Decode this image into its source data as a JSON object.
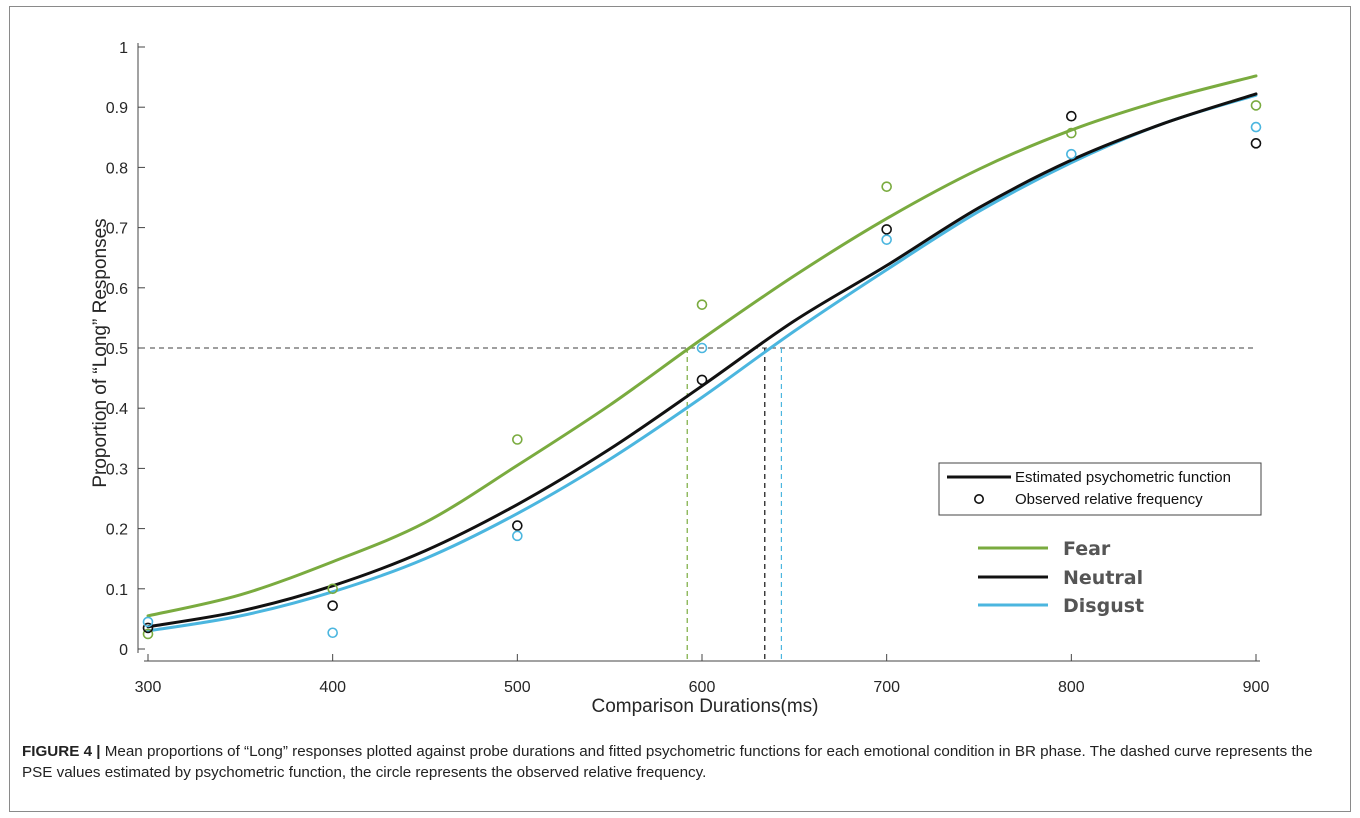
{
  "chart_data": {
    "type": "line",
    "xlabel": "Comparison Durations(ms)",
    "ylabel": "Proportion of “Long” Responses",
    "xlim": [
      300,
      900
    ],
    "ylim": [
      0,
      1
    ],
    "xticks": [
      300,
      400,
      500,
      600,
      700,
      800,
      900
    ],
    "yticks": [
      0,
      0.1,
      0.2,
      0.3,
      0.4,
      0.5,
      0.6,
      0.7,
      0.8,
      0.9,
      1
    ],
    "ytick_labels": [
      "0",
      "0.1",
      "0.2",
      "0.3",
      "0.4",
      "0.5",
      "0.6",
      "0.7",
      "0.8",
      "0.9",
      "1"
    ],
    "threshold": 0.5,
    "legend": {
      "placement": "lower-right",
      "fit_label": "Estimated psychometric function",
      "obs_label": "Observed relative frequency"
    },
    "x": [
      300,
      400,
      500,
      600,
      700,
      800,
      900
    ],
    "series": [
      {
        "name": "Fear",
        "color": "#7aab3f",
        "pse": 592,
        "fit_x": [
          300,
          350,
          400,
          450,
          500,
          550,
          600,
          650,
          700,
          750,
          800,
          850,
          900
        ],
        "fit_y": [
          0.055,
          0.09,
          0.145,
          0.21,
          0.305,
          0.405,
          0.515,
          0.62,
          0.715,
          0.797,
          0.862,
          0.912,
          0.952
        ],
        "observed": [
          0.025,
          0.1,
          0.348,
          0.572,
          0.768,
          0.857,
          0.903
        ]
      },
      {
        "name": "Neutral",
        "color": "#111111",
        "pse": 634,
        "fit_x": [
          300,
          350,
          400,
          450,
          500,
          550,
          600,
          650,
          700,
          750,
          800,
          850,
          900
        ],
        "fit_y": [
          0.037,
          0.063,
          0.105,
          0.163,
          0.24,
          0.332,
          0.437,
          0.545,
          0.637,
          0.733,
          0.812,
          0.873,
          0.922
        ],
        "observed": [
          0.035,
          0.072,
          0.205,
          0.447,
          0.697,
          0.885,
          0.84
        ]
      },
      {
        "name": "Disgust",
        "color": "#4bb6df",
        "pse": 643,
        "fit_x": [
          300,
          350,
          400,
          450,
          500,
          550,
          600,
          650,
          700,
          750,
          800,
          850,
          900
        ],
        "fit_y": [
          0.03,
          0.055,
          0.095,
          0.15,
          0.225,
          0.315,
          0.418,
          0.528,
          0.63,
          0.727,
          0.808,
          0.873,
          0.92
        ],
        "observed": [
          0.045,
          0.027,
          0.188,
          0.5,
          0.68,
          0.822,
          0.867
        ]
      }
    ]
  },
  "caption": {
    "label": "FIGURE 4 |",
    "text": " Mean proportions of “Long” responses plotted against probe durations and fitted psychometric functions for each emotional condition in BR phase. The dashed curve represents the PSE values estimated by psychometric function, the circle represents the observed relative frequency."
  }
}
